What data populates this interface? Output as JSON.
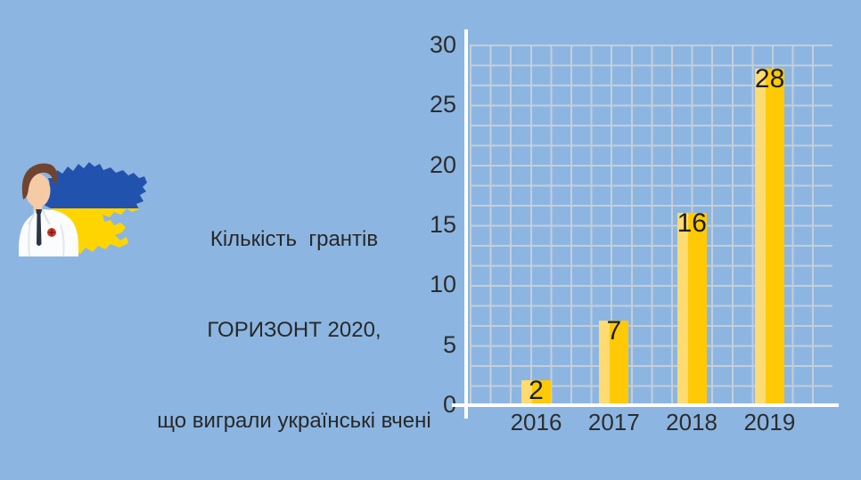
{
  "background_color": "#8CB6E1",
  "illustration": {
    "icons": [
      "scientist-avatar-icon",
      "ukraine-map-icon"
    ],
    "map_blue": "#2153AE",
    "map_yellow": "#FFD500",
    "coat_color": "#FBFCFD",
    "skin_color": "#F4CBA5",
    "hair_color": "#714430",
    "badge_color": "#C9392B"
  },
  "title": {
    "line1": "Кількість  грантів",
    "line2": "ГОРИЗОНТ 2020,",
    "line3": "що виграли українські вчені"
  },
  "chart_data": {
    "type": "bar",
    "title": "Кількість грантів ГОРИЗОНТ 2020, що виграли українські вчені",
    "categories": [
      "2016",
      "2017",
      "2018",
      "2019"
    ],
    "values": [
      2,
      7,
      16,
      28
    ],
    "value_labels": [
      "2",
      "7",
      "16",
      "28"
    ],
    "xlabel": "",
    "ylabel": "",
    "ylim": [
      0,
      30
    ],
    "yticks": [
      30,
      25,
      20,
      15,
      10,
      5,
      0
    ],
    "grid": "square-graph-paper",
    "legend": "none",
    "bar_color_light": "#FFDB72",
    "bar_color_dark": "#FFC906",
    "gridline_color": "#C7CFD8",
    "axis_color": "#FFFFFF",
    "tick_label_color": "#2D2D2D",
    "value_label_color": "#1E1E1E"
  }
}
